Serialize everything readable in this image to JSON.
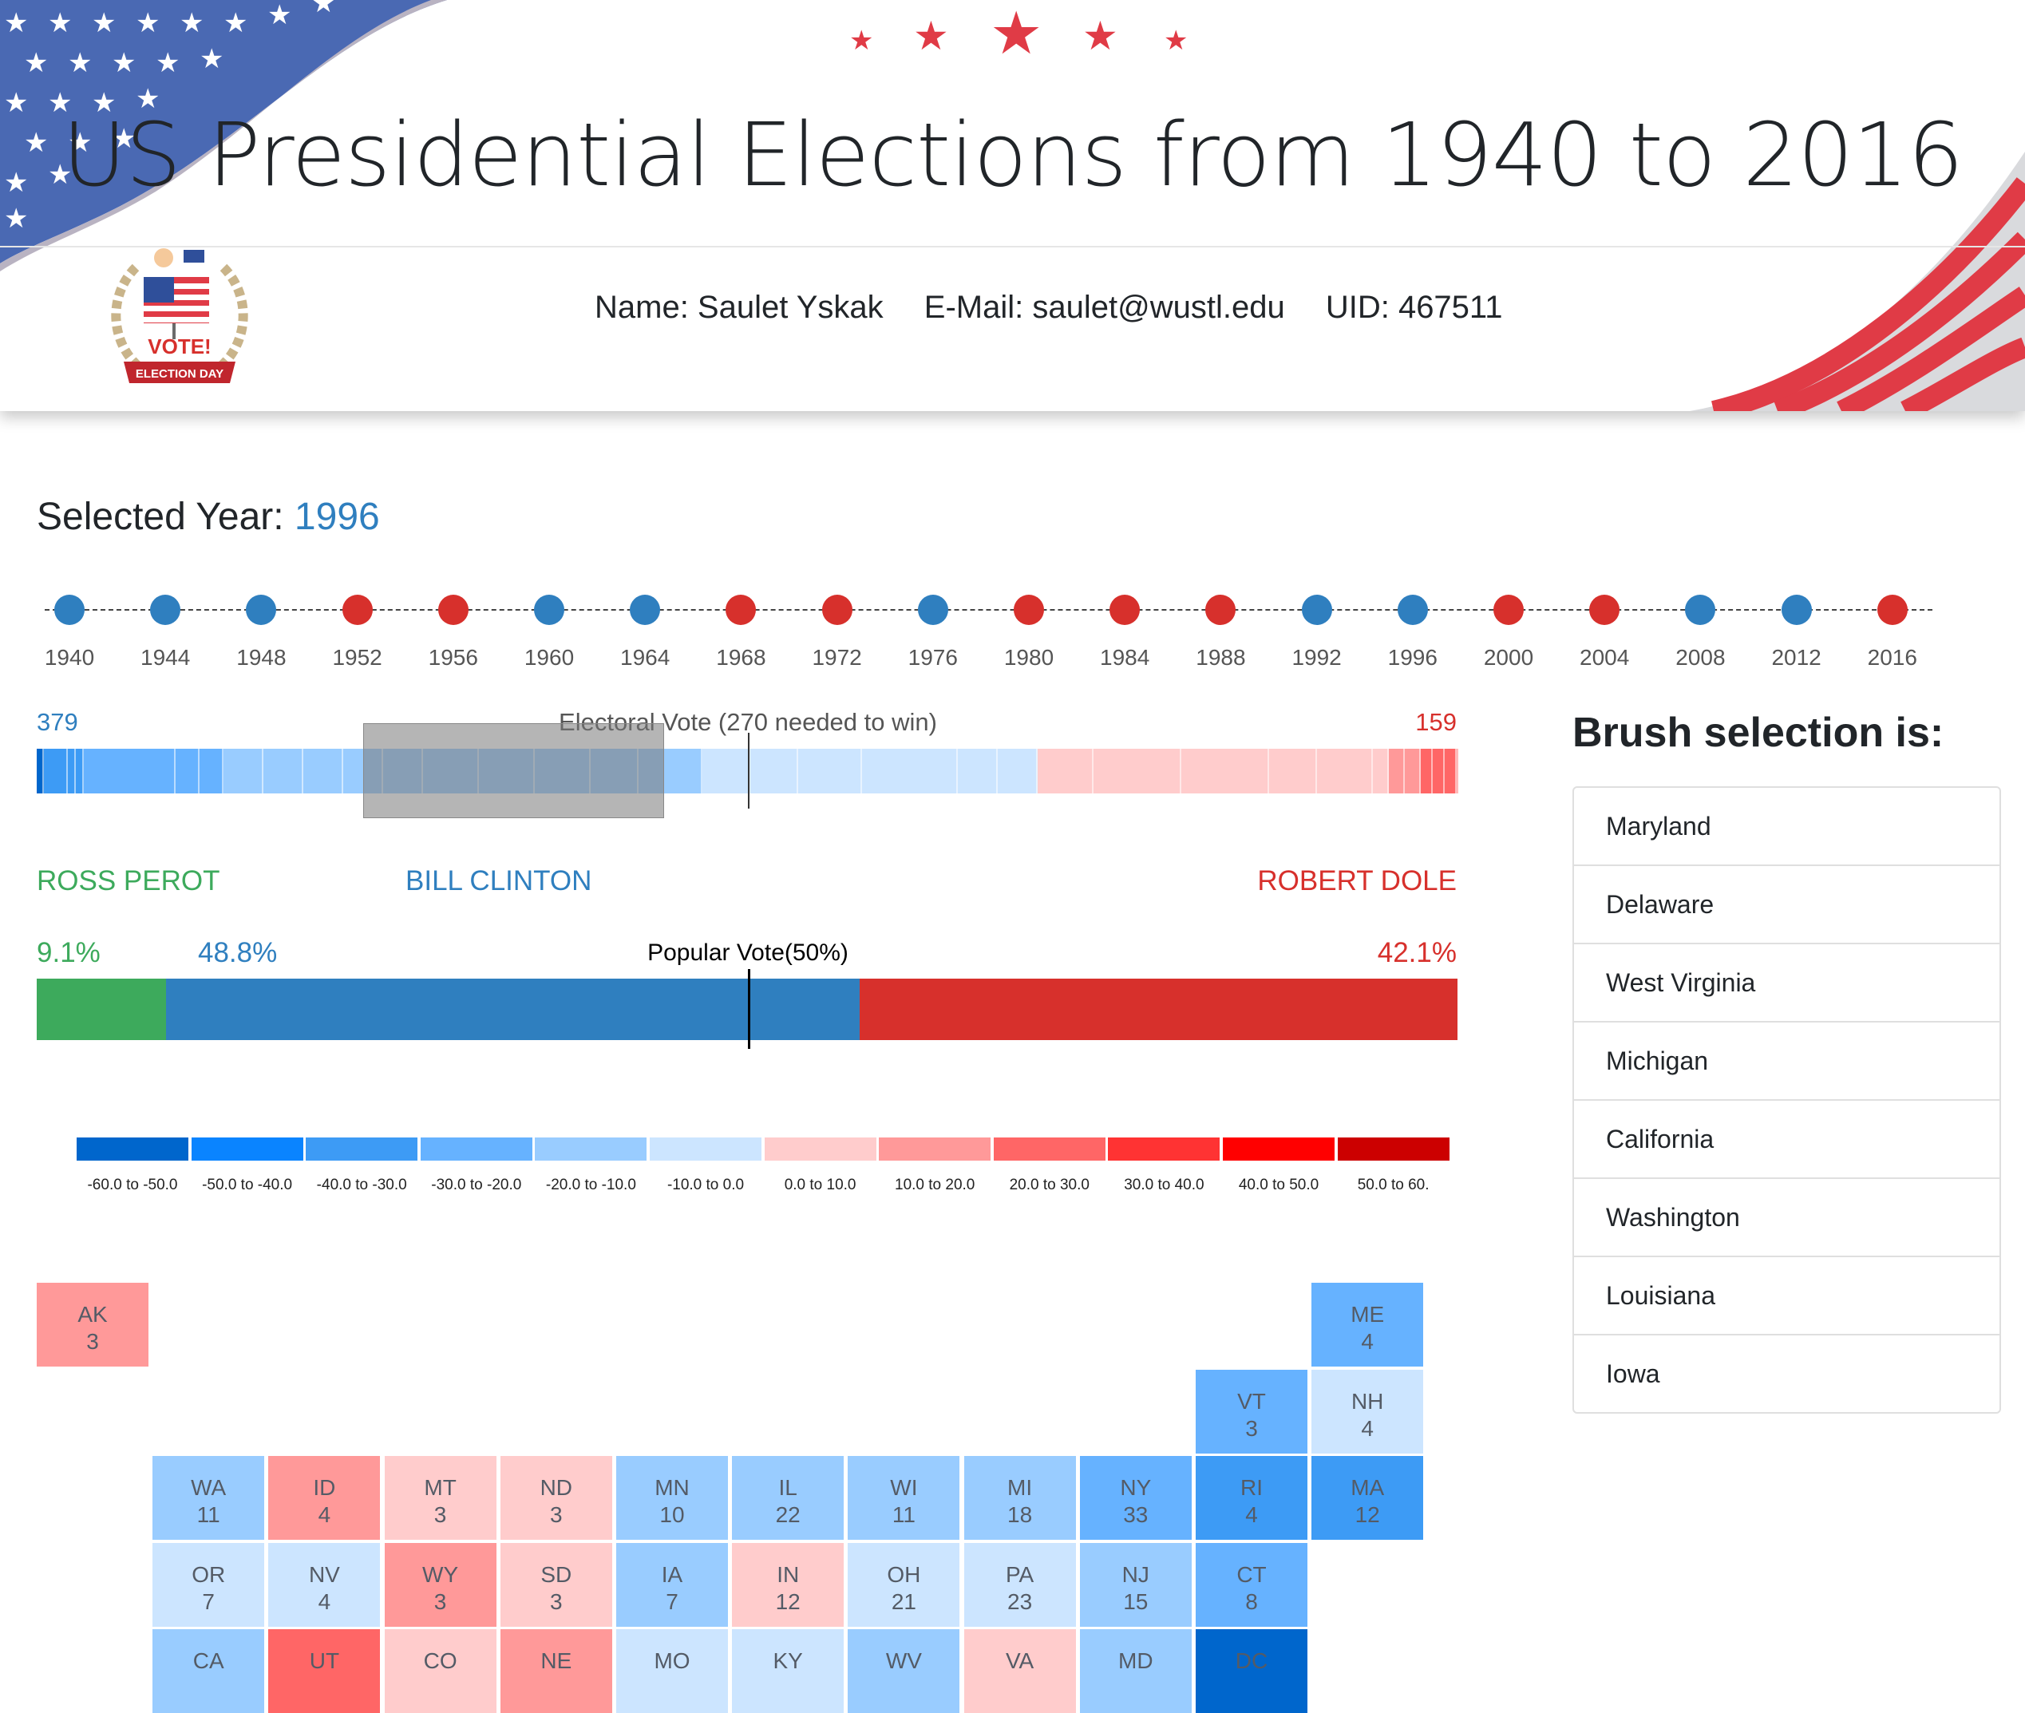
{
  "header": {
    "title": "US Presidential Elections from 1940 to 2016",
    "name": "Name: Saulet Yskak",
    "email": "E-Mail: saulet@wustl.edu",
    "uid": "UID: 467511",
    "badge_text": "VOTE!",
    "badge_ribbon": "ELECTION DAY"
  },
  "colors": {
    "dem": "#2f7fbf",
    "rep": "#d7302c",
    "ind": "#3daa5c"
  },
  "year_section": {
    "label": "Selected Year: ",
    "value": "1996"
  },
  "years": [
    {
      "year": "1940",
      "party": "D"
    },
    {
      "year": "1944",
      "party": "D"
    },
    {
      "year": "1948",
      "party": "D"
    },
    {
      "year": "1952",
      "party": "R"
    },
    {
      "year": "1956",
      "party": "R"
    },
    {
      "year": "1960",
      "party": "D"
    },
    {
      "year": "1964",
      "party": "D"
    },
    {
      "year": "1968",
      "party": "R"
    },
    {
      "year": "1972",
      "party": "R"
    },
    {
      "year": "1976",
      "party": "D"
    },
    {
      "year": "1980",
      "party": "R"
    },
    {
      "year": "1984",
      "party": "R"
    },
    {
      "year": "1988",
      "party": "R"
    },
    {
      "year": "1992",
      "party": "D"
    },
    {
      "year": "1996",
      "party": "D"
    },
    {
      "year": "2000",
      "party": "R"
    },
    {
      "year": "2004",
      "party": "R"
    },
    {
      "year": "2008",
      "party": "D"
    },
    {
      "year": "2012",
      "party": "D"
    },
    {
      "year": "2016",
      "party": "R"
    }
  ],
  "electoral": {
    "title": "Electoral Vote (270 needed to win)",
    "dem_total": "379",
    "rep_total": "159"
  },
  "candidates": {
    "ind": {
      "name": "ROSS PEROT",
      "pct": "9.1%",
      "value": 9.1
    },
    "dem": {
      "name": "BILL CLINTON",
      "pct": "48.8%",
      "value": 48.8
    },
    "rep": {
      "name": "ROBERT DOLE",
      "pct": "42.1%",
      "value": 42.1
    }
  },
  "popular_vote_label": "Popular Vote(50%)",
  "legend": [
    {
      "label": "-60.0 to -50.0",
      "color": "#0066cc"
    },
    {
      "label": "-50.0 to -40.0",
      "color": "#0a84ff"
    },
    {
      "label": "-40.0 to -30.0",
      "color": "#3d9bf5"
    },
    {
      "label": "-30.0 to -20.0",
      "color": "#66b2ff"
    },
    {
      "label": "-20.0 to -10.0",
      "color": "#99ccff"
    },
    {
      "label": "-10.0 to 0.0",
      "color": "#cce5ff"
    },
    {
      "label": "0.0 to 10.0",
      "color": "#ffcccc"
    },
    {
      "label": "10.0 to 20.0",
      "color": "#ff9999"
    },
    {
      "label": "20.0 to 30.0",
      "color": "#ff6666"
    },
    {
      "label": "30.0 to 40.0",
      "color": "#ff3333"
    },
    {
      "label": "40.0 to 50.0",
      "color": "#ff0000"
    },
    {
      "label": "50.0 to 60.",
      "color": "#cc0000"
    }
  ],
  "tiles": [
    {
      "abbr": "AK",
      "ev": "3",
      "color": "#ff9999"
    },
    {
      "abbr": "ME",
      "ev": "4",
      "color": "#66b2ff"
    },
    {
      "abbr": "VT",
      "ev": "3",
      "color": "#66b2ff"
    },
    {
      "abbr": "NH",
      "ev": "4",
      "color": "#cce5ff"
    },
    {
      "abbr": "WA",
      "ev": "11",
      "color": "#99ccff"
    },
    {
      "abbr": "ID",
      "ev": "4",
      "color": "#ff9999"
    },
    {
      "abbr": "MT",
      "ev": "3",
      "color": "#ffcccc"
    },
    {
      "abbr": "ND",
      "ev": "3",
      "color": "#ffcccc"
    },
    {
      "abbr": "MN",
      "ev": "10",
      "color": "#99ccff"
    },
    {
      "abbr": "IL",
      "ev": "22",
      "color": "#99ccff"
    },
    {
      "abbr": "WI",
      "ev": "11",
      "color": "#99ccff"
    },
    {
      "abbr": "MI",
      "ev": "18",
      "color": "#99ccff"
    },
    {
      "abbr": "NY",
      "ev": "33",
      "color": "#66b2ff"
    },
    {
      "abbr": "RI",
      "ev": "4",
      "color": "#3d9bf5"
    },
    {
      "abbr": "MA",
      "ev": "12",
      "color": "#3d9bf5"
    },
    {
      "abbr": "OR",
      "ev": "7",
      "color": "#cce5ff"
    },
    {
      "abbr": "NV",
      "ev": "4",
      "color": "#cce5ff"
    },
    {
      "abbr": "WY",
      "ev": "3",
      "color": "#ff9999"
    },
    {
      "abbr": "SD",
      "ev": "3",
      "color": "#ffcccc"
    },
    {
      "abbr": "IA",
      "ev": "7",
      "color": "#99ccff"
    },
    {
      "abbr": "IN",
      "ev": "12",
      "color": "#ffcccc"
    },
    {
      "abbr": "OH",
      "ev": "21",
      "color": "#cce5ff"
    },
    {
      "abbr": "PA",
      "ev": "23",
      "color": "#cce5ff"
    },
    {
      "abbr": "NJ",
      "ev": "15",
      "color": "#99ccff"
    },
    {
      "abbr": "CT",
      "ev": "8",
      "color": "#66b2ff"
    },
    {
      "abbr": "CA",
      "ev": "",
      "color": "#99ccff"
    },
    {
      "abbr": "UT",
      "ev": "",
      "color": "#ff6666"
    },
    {
      "abbr": "CO",
      "ev": "",
      "color": "#ffcccc"
    },
    {
      "abbr": "NE",
      "ev": "",
      "color": "#ff9999"
    },
    {
      "abbr": "MO",
      "ev": "",
      "color": "#cce5ff"
    },
    {
      "abbr": "KY",
      "ev": "",
      "color": "#cce5ff"
    },
    {
      "abbr": "WV",
      "ev": "",
      "color": "#99ccff"
    },
    {
      "abbr": "VA",
      "ev": "",
      "color": "#ffcccc"
    },
    {
      "abbr": "MD",
      "ev": "",
      "color": "#99ccff"
    },
    {
      "abbr": "DC",
      "ev": "",
      "color": "#0066cc"
    }
  ],
  "brush": {
    "title": "Brush selection is:",
    "items": [
      "Maryland",
      "Delaware",
      "West Virginia",
      "Michigan",
      "California",
      "Washington",
      "Louisiana",
      "Iowa"
    ]
  }
}
